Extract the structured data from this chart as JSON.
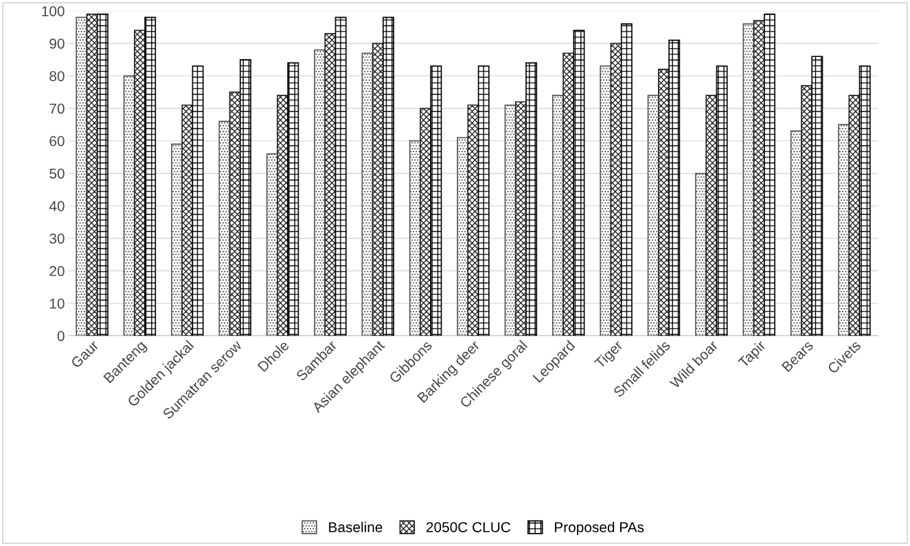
{
  "chart_data": {
    "type": "bar",
    "categories": [
      "Gaur",
      "Banteng",
      "Golden jackal",
      "Sumatran serow",
      "Dhole",
      "Sambar",
      "Asian elephant",
      "Gibbons",
      "Barking deer",
      "Chinese goral",
      "Leopard",
      "Tiger",
      "Small felids",
      "Wild boar",
      "Tapir",
      "Bears",
      "Civets"
    ],
    "series": [
      {
        "name": "Baseline",
        "color": "#555555",
        "values": [
          98,
          80,
          59,
          66,
          56,
          88,
          87,
          60,
          61,
          71,
          74,
          83,
          74,
          50,
          96,
          63,
          65
        ]
      },
      {
        "name": "2050C CLUC",
        "color": "#222222",
        "values": [
          99,
          94,
          71,
          75,
          74,
          93,
          90,
          70,
          71,
          72,
          87,
          90,
          82,
          74,
          97,
          77,
          74
        ]
      },
      {
        "name": "Proposed PAs",
        "color": "#000000",
        "values": [
          99,
          98,
          83,
          85,
          84,
          98,
          98,
          83,
          83,
          84,
          94,
          96,
          91,
          83,
          99,
          86,
          83
        ]
      }
    ],
    "ylim": [
      0,
      100
    ],
    "yticks": [
      0,
      10,
      20,
      30,
      40,
      50,
      60,
      70,
      80,
      90,
      100
    ],
    "grid": "y",
    "legend": "bottom"
  }
}
